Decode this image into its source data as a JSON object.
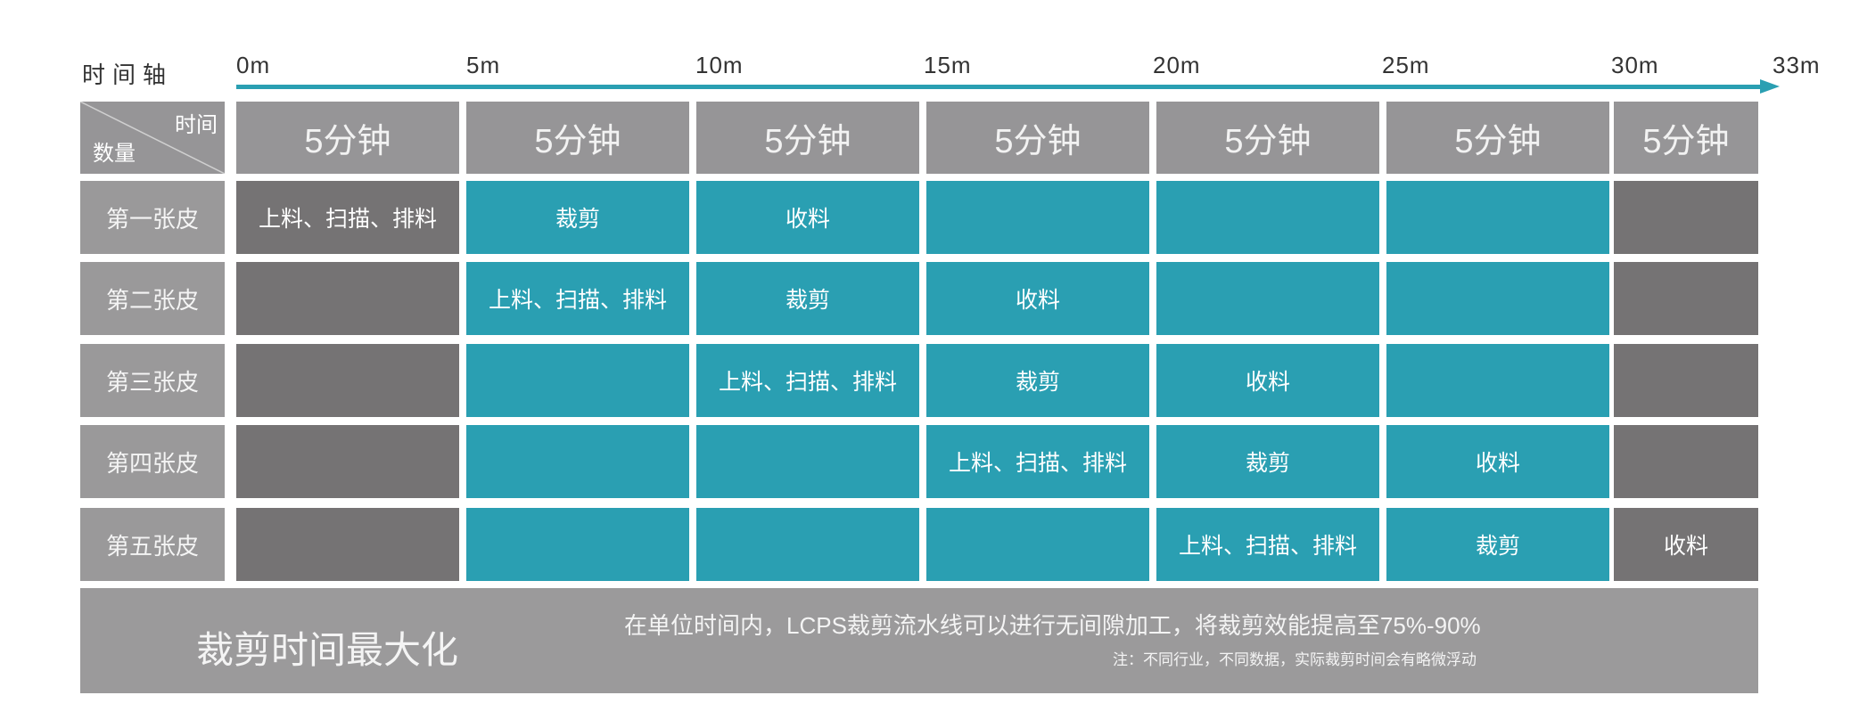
{
  "axis": {
    "title": "时间轴",
    "ticks": [
      "0m",
      "5m",
      "10m",
      "15m",
      "20m",
      "25m",
      "30m",
      "33m"
    ],
    "color": "#2a9fb2"
  },
  "corner": {
    "top_right": "时间",
    "bottom_left": "数量"
  },
  "header": [
    "5分钟",
    "5分钟",
    "5分钟",
    "5分钟",
    "5分钟",
    "5分钟",
    "5分钟"
  ],
  "colors": {
    "active": "#2a9fb2",
    "idle": "#757374",
    "header": "#969597",
    "footer": "#9b9a9b"
  },
  "rows": [
    {
      "label": "第一张皮",
      "cells": [
        {
          "text": "上料、扫描、排料",
          "state": "idle"
        },
        {
          "text": "裁剪",
          "state": "active"
        },
        {
          "text": "收料",
          "state": "active"
        },
        {
          "text": "",
          "state": "active"
        },
        {
          "text": "",
          "state": "active"
        },
        {
          "text": "",
          "state": "active"
        },
        {
          "text": "",
          "state": "idle"
        }
      ]
    },
    {
      "label": "第二张皮",
      "cells": [
        {
          "text": "",
          "state": "idle"
        },
        {
          "text": "上料、扫描、排料",
          "state": "active"
        },
        {
          "text": "裁剪",
          "state": "active"
        },
        {
          "text": "收料",
          "state": "active"
        },
        {
          "text": "",
          "state": "active"
        },
        {
          "text": "",
          "state": "active"
        },
        {
          "text": "",
          "state": "idle"
        }
      ]
    },
    {
      "label": "第三张皮",
      "cells": [
        {
          "text": "",
          "state": "idle"
        },
        {
          "text": "",
          "state": "active"
        },
        {
          "text": "上料、扫描、排料",
          "state": "active"
        },
        {
          "text": "裁剪",
          "state": "active"
        },
        {
          "text": "收料",
          "state": "active"
        },
        {
          "text": "",
          "state": "active"
        },
        {
          "text": "",
          "state": "idle"
        }
      ]
    },
    {
      "label": "第四张皮",
      "cells": [
        {
          "text": "",
          "state": "idle"
        },
        {
          "text": "",
          "state": "active"
        },
        {
          "text": "",
          "state": "active"
        },
        {
          "text": "上料、扫描、排料",
          "state": "active"
        },
        {
          "text": "裁剪",
          "state": "active"
        },
        {
          "text": "收料",
          "state": "active"
        },
        {
          "text": "",
          "state": "idle"
        }
      ]
    },
    {
      "label": "第五张皮",
      "cells": [
        {
          "text": "",
          "state": "idle"
        },
        {
          "text": "",
          "state": "active"
        },
        {
          "text": "",
          "state": "active"
        },
        {
          "text": "",
          "state": "active"
        },
        {
          "text": "上料、扫描、排料",
          "state": "active"
        },
        {
          "text": "裁剪",
          "state": "active"
        },
        {
          "text": "收料",
          "state": "idle"
        }
      ]
    }
  ],
  "footer": {
    "headline": "裁剪时间最大化",
    "main": "在单位时间内，LCPS裁剪流水线可以进行无间隙加工，将裁剪效能提高至75%-90%",
    "note": "注：不同行业，不同数据，实际裁剪时间会有略微浮动"
  }
}
